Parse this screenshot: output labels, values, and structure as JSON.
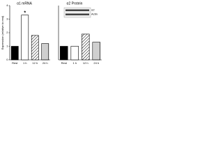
{
  "chart_data": [
    {
      "type": "bar",
      "title": "α1 mRNA",
      "ylabel": "Expression (relative to rest)",
      "categories": [
        "Rest",
        "1 h",
        "12 h",
        "24 h"
      ],
      "values": [
        1,
        3.3,
        1.8,
        1.2
      ],
      "bar_fills": [
        "solid",
        "white",
        "diagonal",
        "dotted"
      ],
      "annotations": [
        {
          "text": "*",
          "category": 1
        }
      ],
      "ylim": [
        0,
        4
      ],
      "yticks": [
        0,
        1,
        2,
        3,
        4
      ]
    },
    {
      "type": "bar",
      "title": "α2 Protein",
      "categories": [
        "Rest",
        "1 h",
        "12 h",
        "24 h"
      ],
      "values": [
        1,
        1,
        1.9,
        1.3
      ],
      "bar_fills": [
        "solid",
        "white",
        "diagonal",
        "dotted"
      ],
      "blot_labels": [
        "α2",
        "Actin"
      ],
      "ylim": [
        0,
        4
      ]
    }
  ]
}
